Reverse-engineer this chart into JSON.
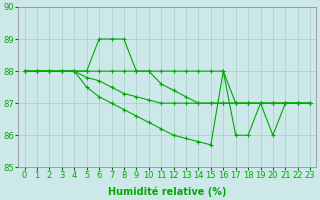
{
  "xlabel": "Humidité relative (%)",
  "xlim": [
    -0.5,
    23.5
  ],
  "ylim": [
    85,
    90
  ],
  "yticks": [
    85,
    86,
    87,
    88,
    89,
    90
  ],
  "xticks": [
    0,
    1,
    2,
    3,
    4,
    5,
    6,
    7,
    8,
    9,
    10,
    11,
    12,
    13,
    14,
    15,
    16,
    17,
    18,
    19,
    20,
    21,
    22,
    23
  ],
  "bg_color": "#cce8e8",
  "grid_color": "#aacccc",
  "line_color": "#00aa00",
  "lines": [
    [
      88,
      88,
      88,
      88,
      88,
      88,
      89,
      89,
      89,
      88,
      88,
      88,
      88,
      88,
      88,
      88,
      88,
      87,
      87,
      87,
      87,
      87,
      87,
      87
    ],
    [
      88,
      88,
      88,
      88,
      88,
      88,
      88,
      88,
      88,
      88,
      88,
      87.6,
      87.4,
      87.2,
      87,
      87,
      87,
      87,
      87,
      87,
      87,
      87,
      87,
      87
    ],
    [
      88,
      88,
      88,
      88,
      88,
      87.8,
      87.7,
      87.5,
      87.3,
      87.2,
      87.1,
      87,
      87,
      87,
      87,
      87,
      87,
      87,
      87,
      87,
      87,
      87,
      87,
      87
    ],
    [
      88,
      88,
      88,
      88,
      88,
      87.5,
      87.2,
      87,
      86.8,
      86.6,
      86.4,
      86.2,
      86,
      85.9,
      85.8,
      85.7,
      88,
      86,
      86,
      87,
      86,
      87,
      87,
      87
    ]
  ],
  "marker": "+",
  "markersize": 3,
  "linewidth": 0.8,
  "xlabel_fontsize": 7,
  "tick_fontsize": 6
}
